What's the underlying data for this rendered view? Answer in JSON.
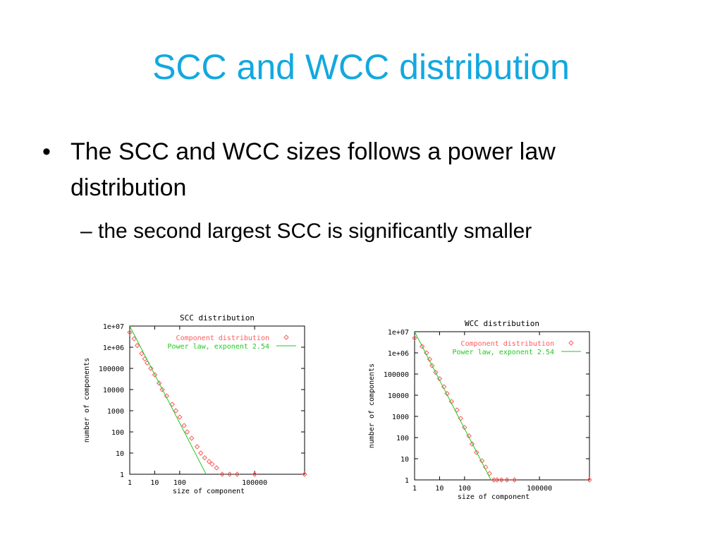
{
  "slide": {
    "title": "SCC and WCC distribution",
    "bullet_1": "The SCC and WCC sizes follows a power law distribution",
    "sub_bullet_1": "the second largest SCC is significantly smaller",
    "bullet_glyph": "•",
    "sub_bullet_glyph": "–"
  },
  "colors": {
    "title": "#12a8e0",
    "component_points": "#ff5a5a",
    "power_law_line": "#22c922",
    "axis": "#000000"
  },
  "chart_data": [
    {
      "type": "scatter",
      "title": "SCC distribution",
      "xlabel": "size of component",
      "ylabel": "number of components",
      "x_scale": "log",
      "y_scale": "log",
      "xlim": [
        1,
        10000000
      ],
      "ylim": [
        1,
        10000000
      ],
      "x_ticks": [
        {
          "value": 1,
          "label": "1"
        },
        {
          "value": 10,
          "label": "10"
        },
        {
          "value": 100,
          "label": "100"
        },
        {
          "value": 100000,
          "label": "100000"
        }
      ],
      "y_ticks": [
        {
          "value": 1,
          "label": "1"
        },
        {
          "value": 10,
          "label": "10"
        },
        {
          "value": 100,
          "label": "100"
        },
        {
          "value": 1000,
          "label": "1000"
        },
        {
          "value": 10000,
          "label": "10000"
        },
        {
          "value": 100000,
          "label": "100000"
        },
        {
          "value": 1000000,
          "label": "1e+06"
        },
        {
          "value": 10000000,
          "label": "1e+07"
        }
      ],
      "legend_position": "top-right",
      "series": [
        {
          "name": "Component distribution",
          "kind": "points",
          "marker": "diamond",
          "x": [
            1,
            1.5,
            2,
            3,
            4,
            5,
            7,
            10,
            15,
            20,
            30,
            50,
            70,
            100,
            150,
            200,
            300,
            500,
            700,
            1000,
            1500,
            2000,
            3000,
            5000,
            10000,
            20000,
            100000,
            10000000
          ],
          "y": [
            5000000,
            2500000,
            1200000,
            500000,
            280000,
            180000,
            100000,
            50000,
            20000,
            10000,
            5000,
            2000,
            1000,
            500,
            200,
            100,
            50,
            20,
            10,
            6,
            4,
            3,
            2,
            1,
            1,
            1,
            1,
            1
          ]
        },
        {
          "name": "Power law, exponent 2.54",
          "kind": "line",
          "x": [
            1,
            10000
          ],
          "y": [
            10000000,
            0.0069
          ]
        }
      ]
    },
    {
      "type": "scatter",
      "title": "WCC distribution",
      "xlabel": "size of component",
      "ylabel": "number of components",
      "x_scale": "log",
      "y_scale": "log",
      "xlim": [
        1,
        10000000
      ],
      "ylim": [
        1,
        10000000
      ],
      "x_ticks": [
        {
          "value": 1,
          "label": "1"
        },
        {
          "value": 10,
          "label": "10"
        },
        {
          "value": 100,
          "label": "100"
        },
        {
          "value": 100000,
          "label": "100000"
        }
      ],
      "y_ticks": [
        {
          "value": 1,
          "label": "1"
        },
        {
          "value": 10,
          "label": "10"
        },
        {
          "value": 100,
          "label": "100"
        },
        {
          "value": 1000,
          "label": "1000"
        },
        {
          "value": 10000,
          "label": "10000"
        },
        {
          "value": 100000,
          "label": "100000"
        },
        {
          "value": 1000000,
          "label": "1e+06"
        },
        {
          "value": 10000000,
          "label": "1e+07"
        }
      ],
      "legend_position": "top-right",
      "series": [
        {
          "name": "Component distribution",
          "kind": "points",
          "marker": "diamond",
          "x": [
            1,
            2,
            3,
            4,
            5,
            7,
            10,
            15,
            20,
            30,
            50,
            70,
            100,
            150,
            200,
            300,
            500,
            700,
            1000,
            1500,
            2000,
            3000,
            5000,
            10000,
            10000000
          ],
          "y": [
            5000000,
            2000000,
            1000000,
            500000,
            250000,
            120000,
            60000,
            25000,
            12000,
            5000,
            2000,
            800,
            300,
            120,
            50,
            20,
            8,
            4,
            2,
            1,
            1,
            1,
            1,
            1,
            1
          ]
        },
        {
          "name": "Power law, exponent 2.54",
          "kind": "line",
          "x": [
            1,
            10000
          ],
          "y": [
            10000000,
            0.0069
          ]
        }
      ]
    }
  ]
}
